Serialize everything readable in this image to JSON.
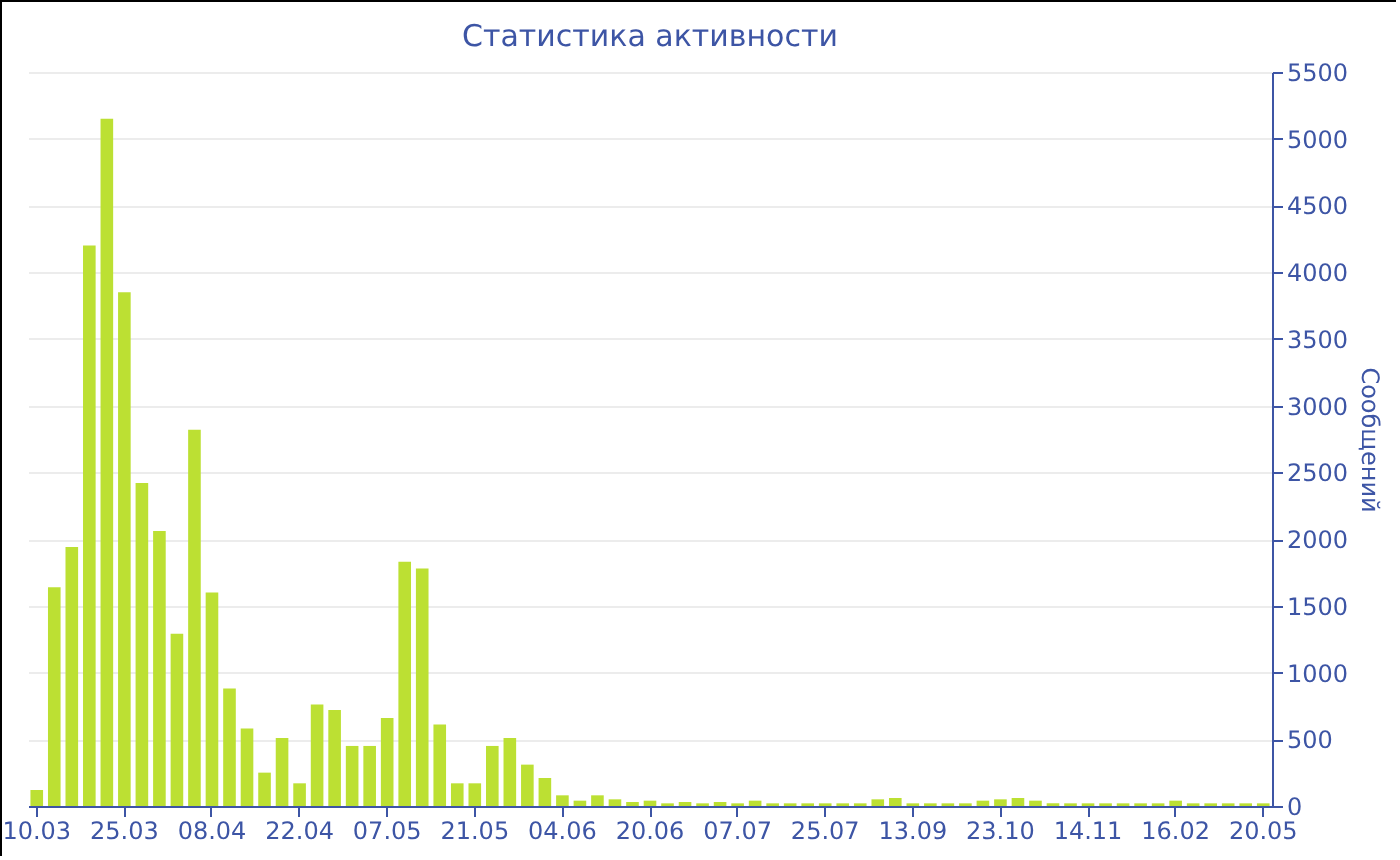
{
  "chart_data": {
    "type": "bar",
    "title": "Статистика активности",
    "ylabel": "Сообщений",
    "categories": [
      "10.03",
      null,
      null,
      null,
      null,
      "25.03",
      null,
      null,
      null,
      null,
      "08.04",
      null,
      null,
      null,
      null,
      "22.04",
      null,
      null,
      null,
      null,
      "07.05",
      null,
      null,
      null,
      null,
      "21.05",
      null,
      null,
      null,
      null,
      "04.06",
      null,
      null,
      null,
      null,
      "20.06",
      null,
      null,
      null,
      null,
      "07.07",
      null,
      null,
      null,
      null,
      "25.07",
      null,
      null,
      null,
      null,
      "13.09",
      null,
      null,
      null,
      null,
      "23.10",
      null,
      null,
      null,
      null,
      "14.11",
      null,
      null,
      null,
      null,
      "16.02",
      null,
      null,
      null,
      null,
      "20.05"
    ],
    "values": [
      120,
      1640,
      1940,
      4200,
      5150,
      3850,
      2420,
      2060,
      1290,
      2820,
      1600,
      880,
      580,
      250,
      510,
      170,
      760,
      720,
      450,
      450,
      660,
      1830,
      1780,
      610,
      170,
      170,
      450,
      510,
      310,
      210,
      80,
      40,
      80,
      50,
      30,
      40,
      20,
      30,
      20,
      30,
      20,
      40,
      20,
      20,
      20,
      20,
      20,
      20,
      50,
      60,
      20,
      20,
      20,
      20,
      40,
      50,
      60,
      40,
      20,
      20,
      20,
      20,
      20,
      20,
      20,
      40,
      20,
      20,
      20,
      20,
      20
    ],
    "color": "#bce033",
    "ylim": [
      0,
      5500
    ],
    "yticks": [
      0,
      500,
      1000,
      1500,
      2000,
      2500,
      3000,
      3500,
      4000,
      4500,
      5000,
      5500
    ],
    "grid": "y"
  }
}
